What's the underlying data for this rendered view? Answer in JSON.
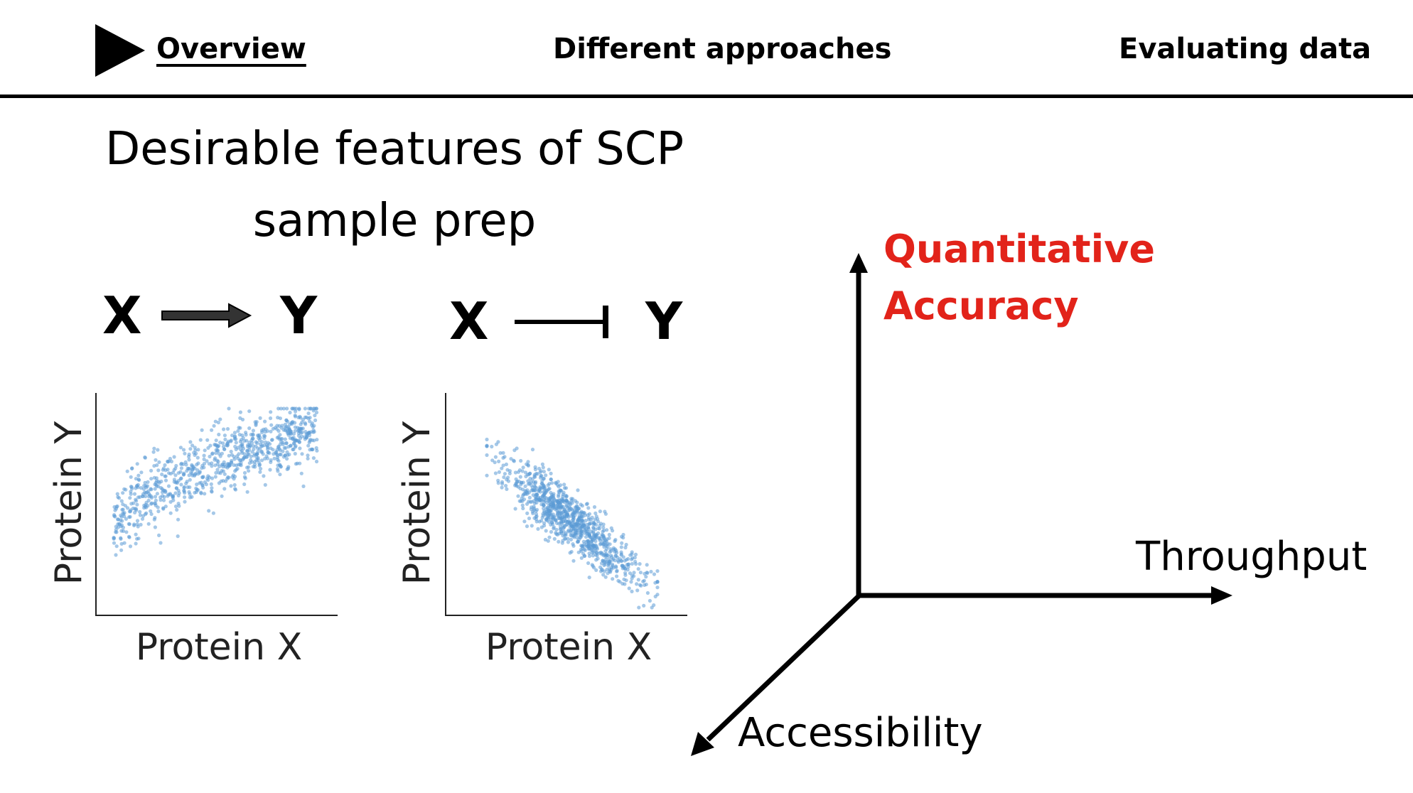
{
  "nav": {
    "items": [
      {
        "label": "Overview",
        "active": true
      },
      {
        "label": "Different approaches",
        "active": false
      },
      {
        "label": "Evaluating data",
        "active": false
      }
    ],
    "current_marker_icon": "play-triangle-icon"
  },
  "title": {
    "line1": "Desirable features of SCP",
    "line2": "sample prep"
  },
  "relations": [
    {
      "from": "X",
      "to": "Y",
      "type": "activation",
      "icon": "arrow-right-icon"
    },
    {
      "from": "X",
      "to": "Y",
      "type": "inhibition",
      "icon": "inhibition-bar-icon"
    }
  ],
  "scatter_plots": [
    {
      "xlabel": "Protein X",
      "ylabel": "Protein Y",
      "trend": "saturating positive",
      "point_color": "#5b9bd5"
    },
    {
      "xlabel": "Protein X",
      "ylabel": "Protein Y",
      "trend": "negative linear",
      "point_color": "#5b9bd5"
    }
  ],
  "axes3d": {
    "vertical_label_line1": "Quantitative",
    "vertical_label_line2": "Accuracy",
    "vertical_color": "#e2231a",
    "horizontal_label": "Throughput",
    "diagonal_label": "Accessibility"
  }
}
